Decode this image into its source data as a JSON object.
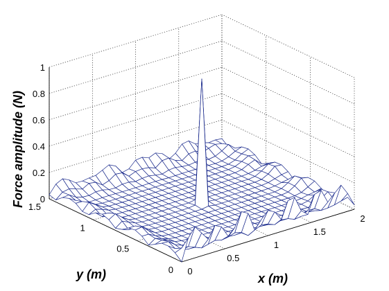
{
  "chart_data": {
    "type": "surface",
    "title": "",
    "xlabel": "x (m)",
    "ylabel": "y (m)",
    "zlabel": "Force amplitude (N)",
    "xlim": [
      0,
      2
    ],
    "ylim": [
      0,
      1.5
    ],
    "zlim": [
      0,
      1
    ],
    "x_ticks": [
      "0",
      "0.5",
      "1",
      "1.5",
      "2"
    ],
    "y_ticks": [
      "0",
      "0.5",
      "1",
      "1.5"
    ],
    "z_ticks": [
      "0",
      "0.2",
      "0.4",
      "0.6",
      "0.8",
      "1"
    ],
    "grid": true,
    "mesh": {
      "nx": 27,
      "ny": 21
    },
    "peak": {
      "x": 1.0,
      "y": 0.75,
      "z": 0.95
    },
    "edge_ripple_max": 0.25,
    "colors": {
      "mesh": "#1a2a8c",
      "surface": "#ffffff",
      "grid": "#000000",
      "axes": "#000000"
    }
  }
}
